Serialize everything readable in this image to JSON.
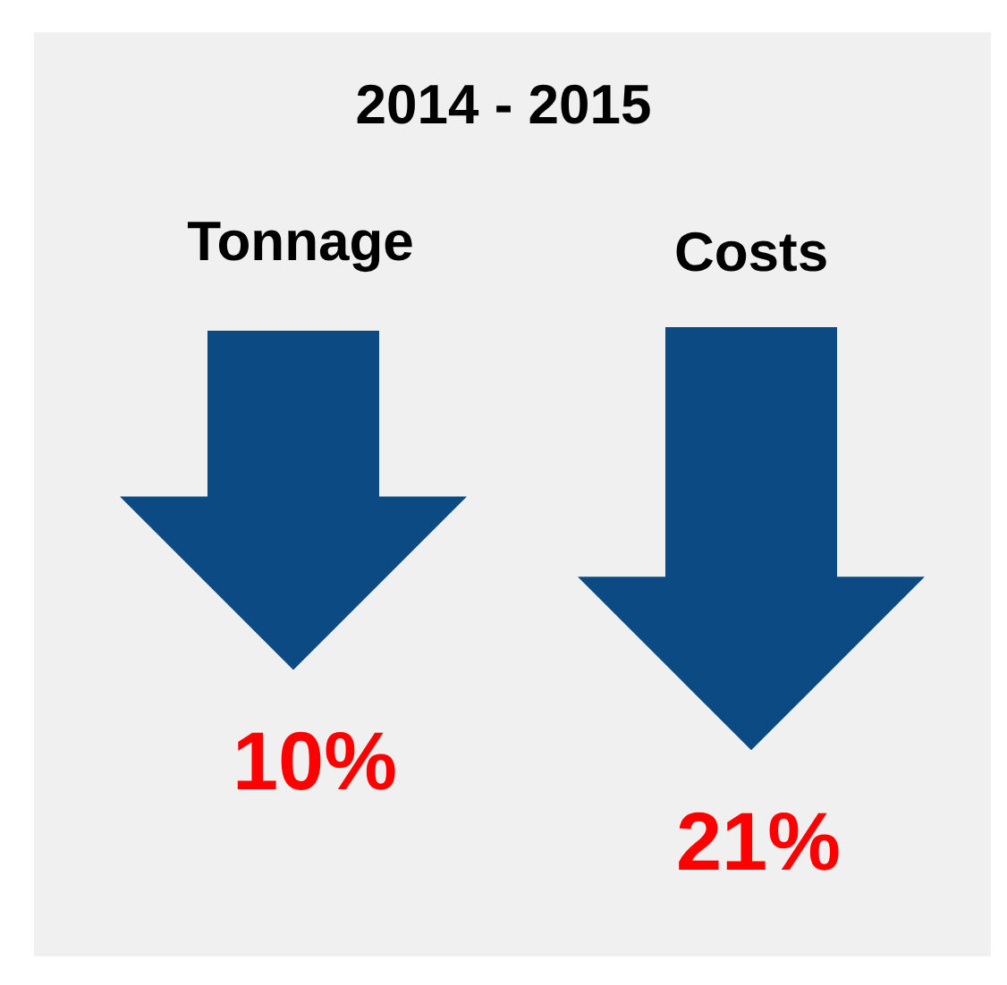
{
  "chart_data": {
    "type": "other",
    "title": "2014 - 2015",
    "categories": [
      "Tonnage",
      "Costs"
    ],
    "values": [
      10,
      21
    ],
    "value_labels": [
      "10%",
      "21%"
    ],
    "color": "#0b4a82"
  }
}
